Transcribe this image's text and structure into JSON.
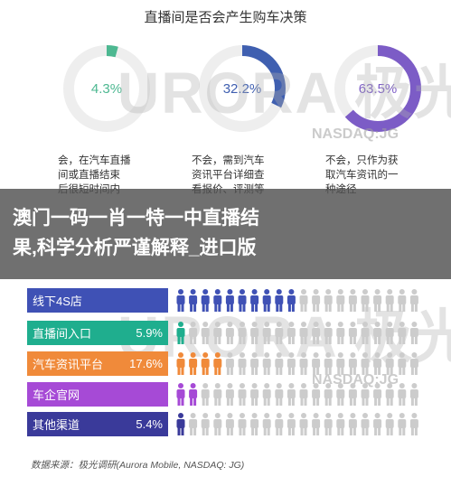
{
  "chart_data": [
    {
      "type": "pie",
      "title": "直播间是否会产生购车决策",
      "slices": [
        {
          "value": 4.3,
          "label": "4.3%",
          "color": "#4db891",
          "desc": [
            "会，在汽车直播",
            "间或直播结束",
            "后很短时间内"
          ]
        },
        {
          "value": 32.2,
          "label": "32.2%",
          "color": "#3f5fb0",
          "desc": [
            "不会，需到汽车",
            "资讯平台详细查",
            "看报价、评测等"
          ]
        },
        {
          "value": 63.5,
          "label": "63.5%",
          "color": "#7c5cc6",
          "desc": [
            "不会，只作为获",
            "取汽车资讯的一",
            "种途径"
          ]
        }
      ]
    },
    {
      "type": "bar",
      "categories": [
        "线下4S店",
        "直播间入口",
        "汽车资讯平台",
        "车企官网",
        "其他渠道"
      ],
      "values": [
        null,
        5.9,
        17.6,
        null,
        5.4
      ],
      "value_labels": [
        "",
        "5.9%",
        "17.6%",
        "",
        "5.4%"
      ],
      "colors": [
        "#3f51b5",
        "#1fae8e",
        "#f08a3a",
        "#a64ad6",
        "#3a3a9a"
      ],
      "highlight_counts": [
        10,
        1,
        4,
        2,
        1
      ],
      "total_icons": 20
    }
  ],
  "watermark": {
    "brand": "URORA",
    "brand_cn": "极光",
    "sub": "NASDAQ:JG"
  },
  "banner": {
    "line1": "澳门一码一肖一特一中直播结",
    "line2": "果,科学分析严谨解释_进口版"
  },
  "source": "数据来源：极光调研(Aurora Mobile, NASDAQ: JG)",
  "colors": {
    "icon_grey": "#cccccc",
    "track": "#eeeeee"
  }
}
